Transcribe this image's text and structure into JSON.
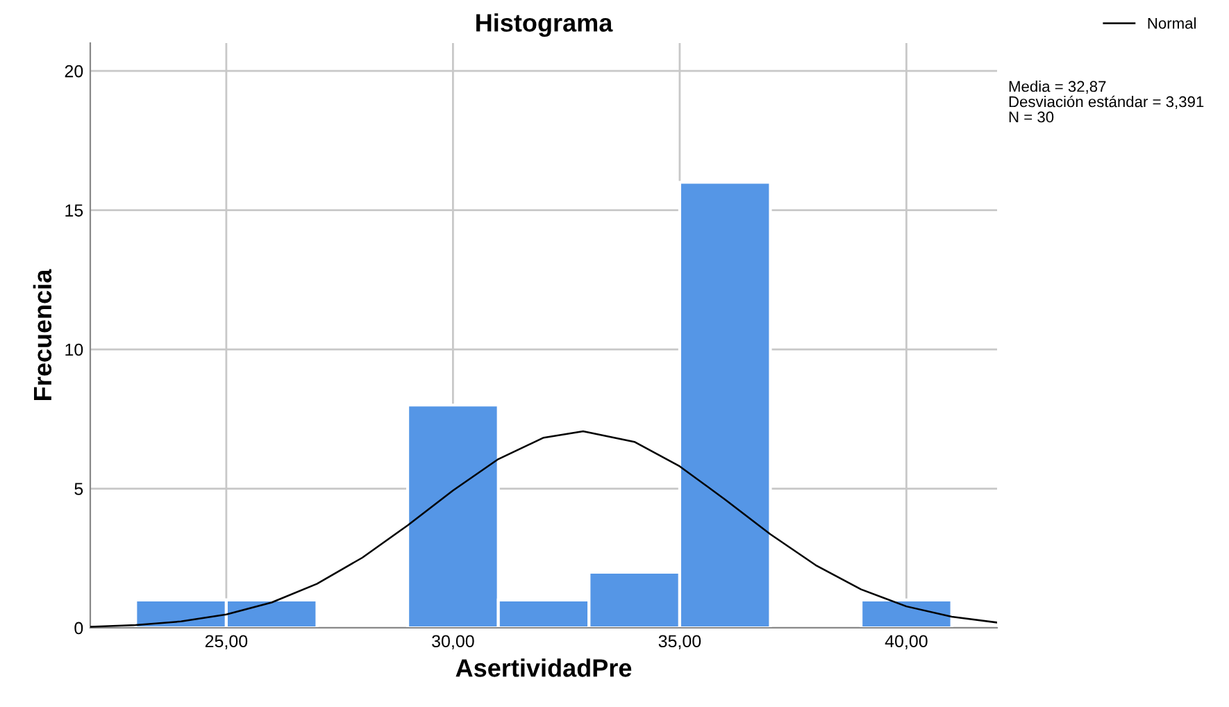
{
  "chart_data": {
    "type": "histogram",
    "title": "Histograma",
    "xlabel": "AsertividadPre",
    "ylabel": "Frecuencia",
    "xlim": [
      22,
      42
    ],
    "ylim": [
      0,
      21
    ],
    "xticks": [
      {
        "value": 25,
        "label": "25,00"
      },
      {
        "value": 30,
        "label": "30,00"
      },
      {
        "value": 35,
        "label": "35,00"
      },
      {
        "value": 40,
        "label": "40,00"
      }
    ],
    "yticks": [
      0,
      5,
      10,
      15,
      20
    ],
    "grid": true,
    "legend": "top right",
    "series": [
      {
        "color": "#5596e6",
        "bins": [
          23,
          25,
          27,
          29,
          31,
          33,
          35,
          37,
          39,
          41
        ],
        "values": [
          1,
          1,
          0,
          8,
          1,
          2,
          16,
          0,
          1
        ]
      },
      {
        "type": "line",
        "name": "Normal",
        "color": "#000000",
        "x": [
          22,
          23,
          24,
          25,
          26,
          27,
          28,
          29,
          30,
          31,
          32,
          32.87,
          34,
          35,
          36,
          37,
          38,
          39,
          40,
          41,
          42
        ],
        "values": [
          0.04,
          0.1,
          0.23,
          0.48,
          0.91,
          1.58,
          2.52,
          3.68,
          4.93,
          6.06,
          6.83,
          7.06,
          6.68,
          5.8,
          4.61,
          3.36,
          2.25,
          1.38,
          0.77,
          0.4,
          0.19
        ]
      }
    ],
    "annotations": [
      "Media = 32,87",
      "Desviación estándar = 3,391",
      "N = 30"
    ]
  }
}
